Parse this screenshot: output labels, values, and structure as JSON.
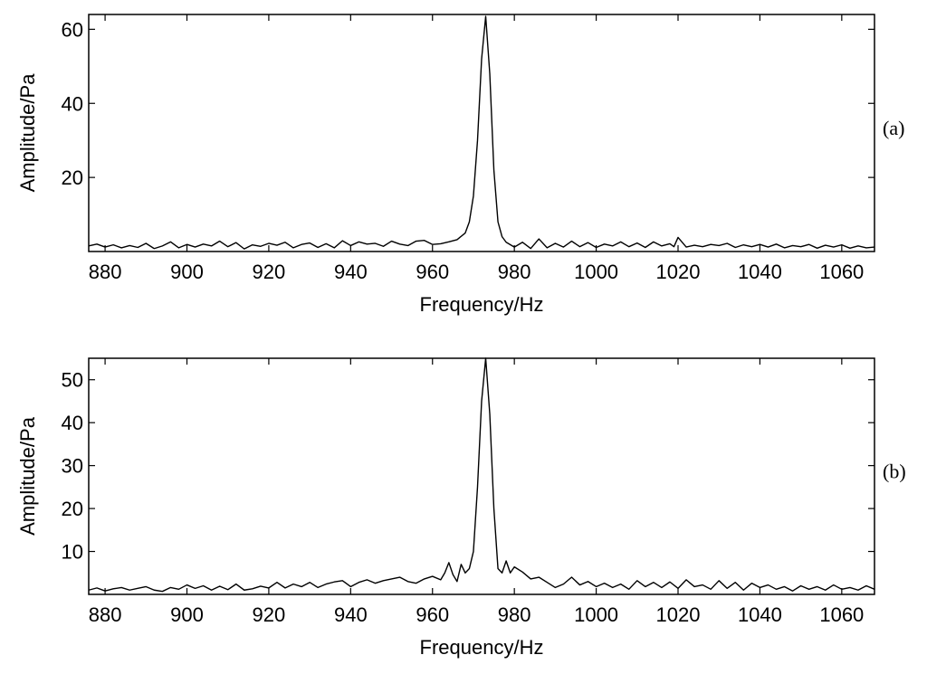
{
  "chart_data": [
    {
      "type": "line",
      "panel_label": "(a)",
      "xlabel": "Frequency/Hz",
      "ylabel": "Amplitude/Pa",
      "xlim": [
        876,
        1068
      ],
      "ylim": [
        0,
        64
      ],
      "xticks": [
        880,
        900,
        920,
        940,
        960,
        980,
        1000,
        1020,
        1040,
        1060
      ],
      "yticks": [
        20,
        40,
        60
      ],
      "grid": false,
      "series": [
        {
          "color": "#000000",
          "x": [
            876,
            878,
            880,
            882,
            884,
            886,
            888,
            890,
            892,
            894,
            896,
            898,
            900,
            902,
            904,
            906,
            908,
            910,
            912,
            914,
            916,
            918,
            920,
            922,
            924,
            926,
            928,
            930,
            932,
            934,
            936,
            938,
            940,
            942,
            944,
            946,
            948,
            950,
            952,
            954,
            956,
            958,
            960,
            962,
            964,
            966,
            968,
            969,
            970,
            971,
            972,
            973,
            974,
            975,
            976,
            977,
            978,
            980,
            982,
            984,
            986,
            988,
            990,
            992,
            994,
            996,
            998,
            1000,
            1002,
            1004,
            1006,
            1008,
            1010,
            1012,
            1014,
            1016,
            1018,
            1019,
            1020,
            1022,
            1024,
            1026,
            1028,
            1030,
            1032,
            1034,
            1036,
            1038,
            1040,
            1042,
            1044,
            1046,
            1048,
            1050,
            1052,
            1054,
            1056,
            1058,
            1060,
            1062,
            1064,
            1066,
            1068
          ],
          "y": [
            1.5,
            2.0,
            1.2,
            1.8,
            1.0,
            1.6,
            1.1,
            2.2,
            0.8,
            1.5,
            2.6,
            1.0,
            1.9,
            1.2,
            2.0,
            1.5,
            2.8,
            1.3,
            2.4,
            0.7,
            1.8,
            1.4,
            2.2,
            1.7,
            2.5,
            1.0,
            1.9,
            2.3,
            1.1,
            2.1,
            1.0,
            2.9,
            1.6,
            2.6,
            2.0,
            2.2,
            1.4,
            2.8,
            2.0,
            1.6,
            2.8,
            3.0,
            1.9,
            2.1,
            2.6,
            3.2,
            5.0,
            8.0,
            15.0,
            30.0,
            52.0,
            63.5,
            48.0,
            22.0,
            8.0,
            4.0,
            2.5,
            1.2,
            2.5,
            0.8,
            3.4,
            1.0,
            2.2,
            1.2,
            2.8,
            1.3,
            2.4,
            1.1,
            2.0,
            1.5,
            2.6,
            1.3,
            2.3,
            1.1,
            2.6,
            1.5,
            2.1,
            1.3,
            3.8,
            1.2,
            1.7,
            1.3,
            1.9,
            1.6,
            2.2,
            1.1,
            1.8,
            1.3,
            1.9,
            1.2,
            2.0,
            1.0,
            1.6,
            1.3,
            1.9,
            0.9,
            1.7,
            1.2,
            1.8,
            0.9,
            1.5,
            1.0,
            1.2
          ]
        }
      ]
    },
    {
      "type": "line",
      "panel_label": "(b)",
      "xlabel": "Frequency/Hz",
      "ylabel": "Amplitude/Pa",
      "xlim": [
        876,
        1068
      ],
      "ylim": [
        0,
        55
      ],
      "xticks": [
        880,
        900,
        920,
        940,
        960,
        980,
        1000,
        1020,
        1040,
        1060
      ],
      "yticks": [
        10,
        20,
        30,
        40,
        50
      ],
      "grid": false,
      "series": [
        {
          "color": "#000000",
          "x": [
            876,
            878,
            880,
            882,
            884,
            886,
            888,
            890,
            892,
            894,
            896,
            898,
            900,
            902,
            904,
            906,
            908,
            910,
            912,
            914,
            916,
            918,
            920,
            922,
            924,
            926,
            928,
            930,
            932,
            934,
            936,
            938,
            940,
            942,
            944,
            946,
            948,
            950,
            952,
            954,
            956,
            958,
            960,
            962,
            963,
            964,
            965,
            966,
            967,
            968,
            969,
            970,
            971,
            972,
            973,
            974,
            975,
            976,
            977,
            978,
            979,
            980,
            982,
            984,
            986,
            988,
            990,
            992,
            994,
            996,
            998,
            1000,
            1002,
            1004,
            1006,
            1008,
            1010,
            1012,
            1014,
            1016,
            1018,
            1020,
            1022,
            1024,
            1026,
            1028,
            1030,
            1032,
            1034,
            1036,
            1038,
            1040,
            1042,
            1044,
            1046,
            1048,
            1050,
            1052,
            1054,
            1056,
            1058,
            1060,
            1062,
            1064,
            1066,
            1068
          ],
          "y": [
            1.0,
            1.5,
            0.8,
            1.3,
            1.6,
            1.0,
            1.4,
            1.8,
            1.0,
            0.7,
            1.6,
            1.2,
            2.2,
            1.4,
            2.0,
            1.0,
            1.9,
            1.1,
            2.4,
            1.0,
            1.3,
            1.9,
            1.5,
            2.8,
            1.5,
            2.4,
            1.8,
            2.8,
            1.6,
            2.4,
            2.9,
            3.2,
            1.8,
            2.8,
            3.4,
            2.6,
            3.2,
            3.6,
            4.0,
            3.0,
            2.6,
            3.6,
            4.2,
            3.4,
            5.0,
            7.4,
            4.6,
            3.0,
            7.0,
            5.0,
            6.0,
            10.0,
            25.0,
            45.0,
            55.0,
            42.0,
            20.0,
            6.0,
            5.0,
            7.8,
            5.0,
            6.4,
            5.2,
            3.6,
            4.0,
            2.8,
            1.6,
            2.4,
            4.0,
            2.2,
            3.0,
            1.8,
            2.6,
            1.6,
            2.4,
            1.2,
            3.2,
            1.8,
            2.8,
            1.6,
            2.9,
            1.4,
            3.4,
            1.8,
            2.2,
            1.2,
            3.2,
            1.4,
            2.8,
            1.0,
            2.6,
            1.6,
            2.2,
            1.2,
            1.8,
            0.8,
            2.0,
            1.2,
            1.8,
            1.0,
            2.2,
            1.2,
            1.6,
            1.0,
            2.0,
            1.2
          ]
        }
      ]
    }
  ]
}
